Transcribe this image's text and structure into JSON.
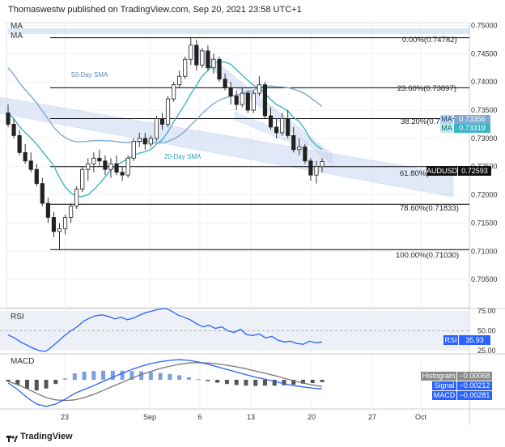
{
  "header": "Thomaswestw published on TradingView.com, Sep 20, 2021 23:58 UTC+1",
  "footer_brand": "TradingView",
  "ma_labels": [
    "MA",
    "MA"
  ],
  "colors": {
    "bull": "#26a69a",
    "bear": "#222222",
    "sma50": "#7fa9d3",
    "sma20": "#3bb5c6",
    "fib": "#000000",
    "rsi": "#2962ff",
    "macd": "#2962ff",
    "signal": "#777777",
    "hist_pos": "#7aa0e0",
    "hist_neg": "#555555",
    "channel": "#c9d7f2"
  },
  "chart_data": [
    {
      "type": "candlestick",
      "symbol": "AUDUSD",
      "last_price_label": "0.72593",
      "x_ticks": [
        "23",
        "Sep",
        "6",
        "13",
        "20",
        "27",
        "Oct"
      ],
      "ylim": [
        0.7,
        0.7505
      ],
      "y_ticks": [
        "0.75000",
        "0.74500",
        "0.74000",
        "0.73500",
        "0.73000",
        "0.72500",
        "0.72000",
        "0.71500",
        "0.71000",
        "0.70500"
      ],
      "series_labels": [
        "50-Day SMA",
        "20-Day SMA"
      ],
      "fibonacci": [
        {
          "label": "0.00%(0.74782)",
          "value": 0.74782
        },
        {
          "label": "23.60%(0.73897)",
          "value": 0.73897
        },
        {
          "label": "38.20%(0.733",
          "value": 0.7335
        },
        {
          "label": "61.80%(0.7",
          "value": 0.725
        },
        {
          "label": "78.60%(0.71833)",
          "value": 0.71833
        },
        {
          "label": "100.00%(0.71030)",
          "value": 0.7103
        }
      ],
      "ma_badges": [
        {
          "name": "MA",
          "value": "0.73356"
        },
        {
          "name": "MA",
          "value": "0.73319"
        }
      ],
      "candles": [
        [
          0.7345,
          0.736,
          0.732,
          0.7325
        ],
        [
          0.7325,
          0.7335,
          0.73,
          0.7305
        ],
        [
          0.7305,
          0.7315,
          0.727,
          0.7275
        ],
        [
          0.7275,
          0.729,
          0.7255,
          0.726
        ],
        [
          0.726,
          0.7275,
          0.724,
          0.7245
        ],
        [
          0.7245,
          0.7255,
          0.7215,
          0.722
        ],
        [
          0.722,
          0.723,
          0.718,
          0.7185
        ],
        [
          0.7185,
          0.7195,
          0.715,
          0.716
        ],
        [
          0.716,
          0.717,
          0.7125,
          0.7135
        ],
        [
          0.7135,
          0.715,
          0.7103,
          0.714
        ],
        [
          0.714,
          0.7165,
          0.713,
          0.716
        ],
        [
          0.716,
          0.7185,
          0.715,
          0.718
        ],
        [
          0.718,
          0.7215,
          0.7175,
          0.721
        ],
        [
          0.721,
          0.725,
          0.7205,
          0.7245
        ],
        [
          0.7245,
          0.7265,
          0.7225,
          0.7255
        ],
        [
          0.7255,
          0.7275,
          0.724,
          0.7265
        ],
        [
          0.7265,
          0.728,
          0.725,
          0.726
        ],
        [
          0.726,
          0.727,
          0.7235,
          0.7245
        ],
        [
          0.7245,
          0.7265,
          0.723,
          0.7255
        ],
        [
          0.7255,
          0.727,
          0.7235,
          0.724
        ],
        [
          0.724,
          0.725,
          0.7225,
          0.7235
        ],
        [
          0.7235,
          0.727,
          0.723,
          0.7265
        ],
        [
          0.7265,
          0.73,
          0.726,
          0.7295
        ],
        [
          0.7295,
          0.731,
          0.7285,
          0.73
        ],
        [
          0.73,
          0.731,
          0.728,
          0.729
        ],
        [
          0.729,
          0.7305,
          0.7285,
          0.73
        ],
        [
          0.73,
          0.734,
          0.7295,
          0.7335
        ],
        [
          0.7335,
          0.7345,
          0.7315,
          0.7325
        ],
        [
          0.7325,
          0.7375,
          0.732,
          0.737
        ],
        [
          0.737,
          0.74,
          0.7365,
          0.7395
        ],
        [
          0.7395,
          0.742,
          0.739,
          0.741
        ],
        [
          0.741,
          0.7445,
          0.7405,
          0.744
        ],
        [
          0.744,
          0.7478,
          0.743,
          0.7465
        ],
        [
          0.7465,
          0.7475,
          0.742,
          0.743
        ],
        [
          0.743,
          0.746,
          0.7425,
          0.7455
        ],
        [
          0.7455,
          0.7465,
          0.742,
          0.7425
        ],
        [
          0.7425,
          0.745,
          0.7415,
          0.744
        ],
        [
          0.744,
          0.7445,
          0.74,
          0.7405
        ],
        [
          0.7405,
          0.7415,
          0.7385,
          0.739
        ],
        [
          0.739,
          0.74,
          0.736,
          0.7375
        ],
        [
          0.7375,
          0.7385,
          0.735,
          0.736
        ],
        [
          0.736,
          0.739,
          0.7355,
          0.738
        ],
        [
          0.738,
          0.7385,
          0.7345,
          0.735
        ],
        [
          0.735,
          0.7385,
          0.7345,
          0.738
        ],
        [
          0.738,
          0.741,
          0.7375,
          0.7395
        ],
        [
          0.7395,
          0.74,
          0.7335,
          0.734
        ],
        [
          0.734,
          0.7355,
          0.7315,
          0.732
        ],
        [
          0.732,
          0.7335,
          0.73,
          0.731
        ],
        [
          0.731,
          0.7345,
          0.7305,
          0.7335
        ],
        [
          0.7335,
          0.735,
          0.73,
          0.7305
        ],
        [
          0.7305,
          0.732,
          0.7275,
          0.728
        ],
        [
          0.728,
          0.73,
          0.727,
          0.7285
        ],
        [
          0.7285,
          0.729,
          0.7255,
          0.726
        ],
        [
          0.726,
          0.7265,
          0.7225,
          0.7235
        ],
        [
          0.7235,
          0.726,
          0.722,
          0.725
        ],
        [
          0.725,
          0.7265,
          0.724,
          0.7259
        ]
      ]
    },
    {
      "type": "line",
      "name": "RSI",
      "value_label": "35.93",
      "y_ticks": [
        "75.00",
        "50.00",
        "25.00"
      ],
      "ylim": [
        22,
        78
      ],
      "values": [
        45,
        41,
        36,
        32,
        28,
        25,
        24,
        30,
        37,
        44,
        50,
        55,
        62,
        66,
        69,
        70,
        68,
        65,
        67,
        64,
        66,
        70,
        73,
        75,
        77,
        78,
        75,
        70,
        67,
        64,
        59,
        55,
        57,
        53,
        55,
        50,
        48,
        52,
        45,
        44,
        46,
        41,
        43,
        38,
        36,
        37,
        34,
        33,
        37,
        35,
        36
      ]
    },
    {
      "type": "line",
      "name": "MACD",
      "badges": [
        {
          "name": "Histogram",
          "value": "−0.00068"
        },
        {
          "name": "Signal",
          "value": "−0.00212"
        },
        {
          "name": "MACD",
          "value": "−0.00281"
        }
      ],
      "ylim": [
        -0.009,
        0.008
      ],
      "macd": [
        -0.001,
        -0.003,
        -0.0055,
        -0.0075,
        -0.0082,
        -0.0075,
        -0.006,
        -0.0042,
        -0.003,
        -0.0018,
        -0.0005,
        0.0008,
        0.002,
        0.0032,
        0.0042,
        0.005,
        0.0056,
        0.006,
        0.0062,
        0.006,
        0.0055,
        0.0048,
        0.004,
        0.0032,
        0.0024,
        0.0016,
        0.0008,
        0.0002,
        -0.0005,
        -0.0012,
        -0.0018,
        -0.0022,
        -0.0026,
        -0.0028
      ],
      "signal": [
        -0.0005,
        -0.0015,
        -0.0028,
        -0.0042,
        -0.0055,
        -0.0062,
        -0.0064,
        -0.0062,
        -0.0055,
        -0.0045,
        -0.0033,
        -0.002,
        -0.0008,
        0.0005,
        0.0016,
        0.0026,
        0.0035,
        0.0042,
        0.0048,
        0.0052,
        0.0053,
        0.0052,
        0.0049,
        0.0045,
        0.004,
        0.0034,
        0.0027,
        0.002,
        0.0013,
        0.0005,
        -0.0003,
        -0.001,
        -0.0016,
        -0.0021
      ],
      "histogram": [
        -0.0005,
        -0.0015,
        -0.0027,
        -0.0033,
        -0.0027,
        -0.0013,
        0.0004,
        0.002,
        0.0025,
        0.0027,
        0.0028,
        0.0028,
        0.0028,
        0.0027,
        0.0026,
        0.0024,
        0.0021,
        0.0018,
        0.0014,
        0.0008,
        0.0002,
        -0.0004,
        -0.0009,
        -0.0013,
        -0.0016,
        -0.0018,
        -0.0019,
        -0.0018,
        -0.0018,
        -0.0017,
        -0.0015,
        -0.0012,
        -0.001,
        -0.0007
      ]
    }
  ]
}
